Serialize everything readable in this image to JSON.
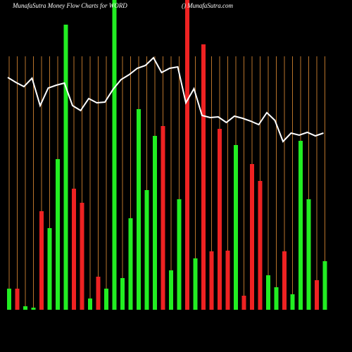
{
  "chart_data": {
    "type": "bar",
    "title": "MunafaSutra  Money Flow  Charts for WORD",
    "subtitle": "() MunafaSutra.com",
    "background": "#000000",
    "gridline_color": "#b8732b",
    "ylim": [
      0,
      440
    ],
    "categories": [
      null,
      null,
      null,
      null,
      null,
      null,
      null,
      null,
      null,
      null,
      null,
      null,
      null,
      null,
      null,
      null,
      null,
      null,
      null,
      null,
      null,
      null,
      null,
      null,
      null,
      null,
      null,
      null,
      null,
      null,
      null,
      null,
      null,
      null,
      null,
      null,
      null,
      null,
      null,
      null
    ],
    "bars": {
      "values": [
        30,
        30,
        5,
        3,
        140,
        116,
        214,
        405,
        172,
        152,
        16,
        47,
        30,
        440,
        45,
        130,
        285,
        170,
        247,
        261,
        56,
        157,
        440,
        73,
        377,
        83,
        257,
        84,
        234,
        20,
        207,
        183,
        49,
        32,
        83,
        22,
        240,
        157,
        42,
        69
      ],
      "colors": [
        "#22ee22",
        "#ee2222",
        "#22ee22",
        "#22ee22",
        "#ee2222",
        "#22ee22",
        "#22ee22",
        "#22ee22",
        "#ee2222",
        "#ee2222",
        "#22ee22",
        "#ee2222",
        "#22ee22",
        "#22ee22",
        "#22ee22",
        "#22ee22",
        "#22ee22",
        "#22ee22",
        "#22ee22",
        "#ee2222",
        "#22ee22",
        "#22ee22",
        "#ee2222",
        "#22ee22",
        "#ee2222",
        "#ee2222",
        "#ee2222",
        "#ee2222",
        "#22ee22",
        "#ee2222",
        "#ee2222",
        "#ee2222",
        "#22ee22",
        "#22ee22",
        "#ee2222",
        "#22ee22",
        "#22ee22",
        "#22ee22",
        "#ee2222",
        "#22ee22"
      ]
    },
    "line": {
      "color": "#ffffff",
      "values": [
        330,
        323,
        317,
        329,
        290,
        315,
        319,
        322,
        290,
        283,
        300,
        294,
        295,
        313,
        327,
        334,
        343,
        347,
        358,
        337,
        343,
        345,
        294,
        314,
        276,
        273,
        274,
        266,
        275,
        272,
        268,
        263,
        280,
        269,
        239,
        251,
        248,
        252,
        247,
        251
      ]
    }
  }
}
